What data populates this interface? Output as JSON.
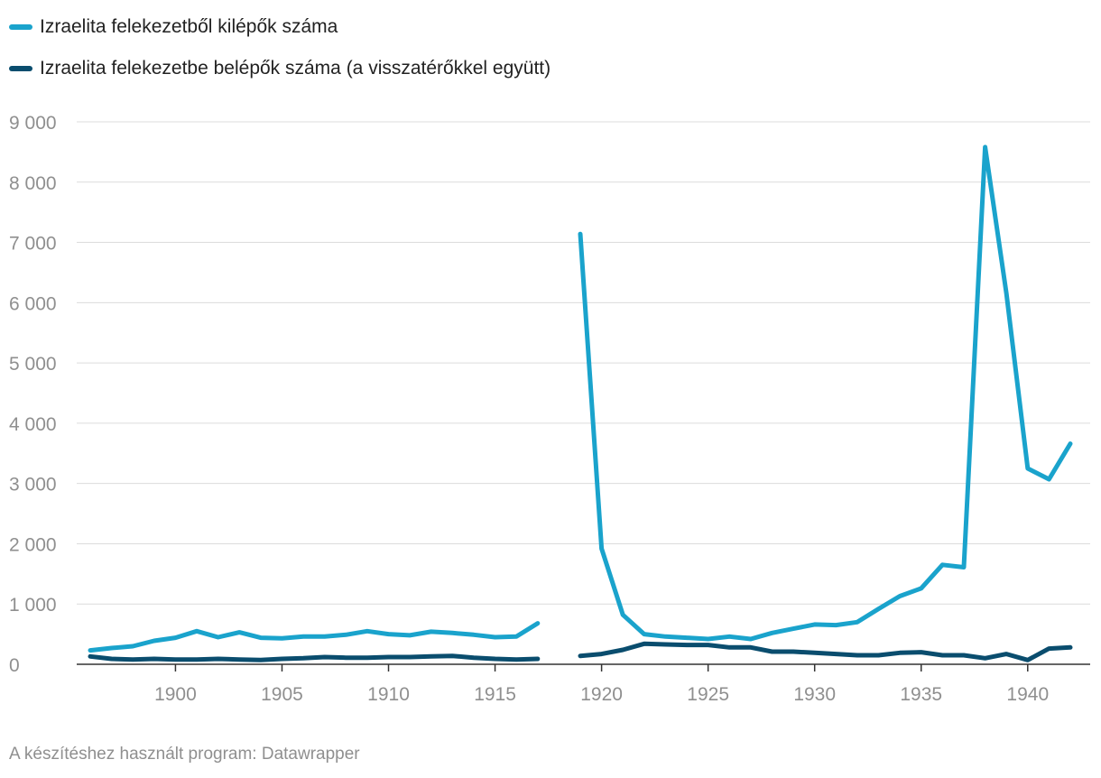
{
  "chart_data": {
    "type": "line",
    "title": "",
    "xlabel": "",
    "ylabel": "",
    "xlim": [
      1896,
      1942
    ],
    "ylim": [
      0,
      9000
    ],
    "grid": true,
    "legend_position": "top-left",
    "y_ticks": [
      0,
      1000,
      2000,
      3000,
      4000,
      5000,
      6000,
      7000,
      8000,
      9000
    ],
    "y_tick_labels": [
      "0",
      "1 000",
      "2 000",
      "3 000",
      "4 000",
      "5 000",
      "6 000",
      "7 000",
      "8 000",
      "9 000"
    ],
    "x_ticks": [
      1900,
      1905,
      1910,
      1915,
      1920,
      1925,
      1930,
      1935,
      1940
    ],
    "x_tick_labels": [
      "1900",
      "1905",
      "1910",
      "1915",
      "1920",
      "1925",
      "1930",
      "1935",
      "1940"
    ],
    "x": [
      1896,
      1897,
      1898,
      1899,
      1900,
      1901,
      1902,
      1903,
      1904,
      1905,
      1906,
      1907,
      1908,
      1909,
      1910,
      1911,
      1912,
      1913,
      1914,
      1915,
      1916,
      1917,
      1918,
      1919,
      1920,
      1921,
      1922,
      1923,
      1924,
      1925,
      1926,
      1927,
      1928,
      1929,
      1930,
      1931,
      1932,
      1933,
      1934,
      1935,
      1936,
      1937,
      1938,
      1939,
      1940,
      1941,
      1942
    ],
    "series": [
      {
        "name": "Izraelita felekezetből kilépők száma",
        "color": "#1aa3cc",
        "values": [
          230,
          270,
          300,
          390,
          440,
          550,
          450,
          530,
          440,
          430,
          460,
          460,
          490,
          550,
          500,
          480,
          540,
          520,
          490,
          450,
          460,
          680,
          null,
          7140,
          1920,
          820,
          500,
          460,
          440,
          420,
          460,
          420,
          520,
          590,
          660,
          650,
          700,
          920,
          1130,
          1260,
          1650,
          1610,
          8580,
          6150,
          3250,
          3070,
          3660
        ]
      },
      {
        "name": "Izraelita felekezetbe belépők száma (a visszatérőkkel együtt)",
        "color": "#0a4d6e",
        "values": [
          130,
          90,
          80,
          90,
          80,
          80,
          90,
          80,
          70,
          90,
          100,
          120,
          110,
          110,
          120,
          120,
          130,
          140,
          110,
          90,
          80,
          90,
          null,
          140,
          170,
          240,
          340,
          330,
          320,
          320,
          280,
          280,
          210,
          210,
          190,
          170,
          150,
          150,
          190,
          200,
          150,
          150,
          100,
          170,
          70,
          260,
          280
        ]
      }
    ]
  },
  "source_text": "A készítéshez használt program: Datawrapper"
}
